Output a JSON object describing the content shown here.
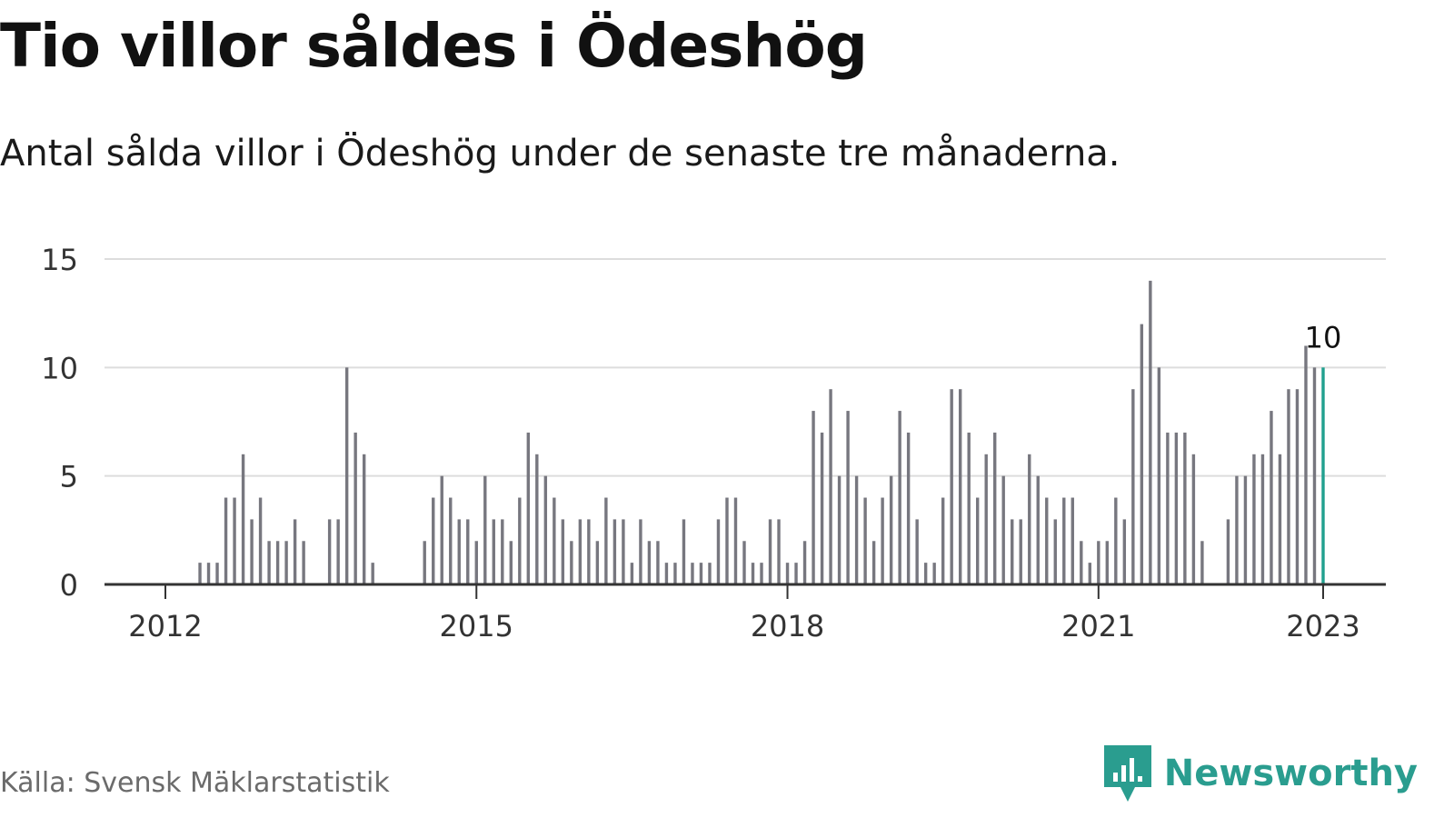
{
  "title": "Tio villor såldes i Ödeshög",
  "subtitle": "Antal sålda villor i Ödeshög under de senaste tre månaderna.",
  "source": "Källa: Svensk Mäklarstatistik",
  "brand": "Newsworthy",
  "colors": {
    "bar": "#77777f",
    "highlight": "#21a08f",
    "grid": "#dddddd",
    "axis": "#333333",
    "brand": "#2a9d8f"
  },
  "chart_data": {
    "type": "bar",
    "title": "Tio villor såldes i Ödeshög",
    "subtitle": "Antal sålda villor i Ödeshög under de senaste tre månaderna.",
    "xlabel": "",
    "ylabel": "",
    "ylim": [
      0,
      15
    ],
    "yticks": [
      0,
      5,
      10,
      15
    ],
    "xticks": [
      "2012",
      "2015",
      "2018",
      "2021",
      "2023"
    ],
    "grid": true,
    "highlight_label": "10",
    "values": [
      0,
      0,
      0,
      0,
      1,
      1,
      1,
      4,
      4,
      6,
      3,
      4,
      2,
      2,
      2,
      3,
      2,
      0,
      0,
      3,
      3,
      10,
      7,
      6,
      1,
      0,
      0,
      0,
      0,
      0,
      2,
      4,
      5,
      4,
      3,
      3,
      2,
      5,
      3,
      3,
      2,
      4,
      7,
      6,
      5,
      4,
      3,
      2,
      3,
      3,
      2,
      4,
      3,
      3,
      1,
      3,
      2,
      2,
      1,
      1,
      3,
      1,
      1,
      1,
      3,
      4,
      4,
      2,
      1,
      1,
      3,
      3,
      1,
      1,
      2,
      8,
      7,
      9,
      5,
      8,
      5,
      4,
      2,
      4,
      5,
      8,
      7,
      3,
      1,
      1,
      4,
      9,
      9,
      7,
      4,
      6,
      7,
      5,
      3,
      3,
      6,
      5,
      4,
      3,
      4,
      4,
      2,
      1,
      2,
      2,
      4,
      3,
      9,
      12,
      14,
      10,
      7,
      7,
      7,
      6,
      2,
      0,
      0,
      3,
      5,
      5,
      6,
      6,
      8,
      6,
      9,
      9,
      11,
      10,
      10
    ]
  }
}
